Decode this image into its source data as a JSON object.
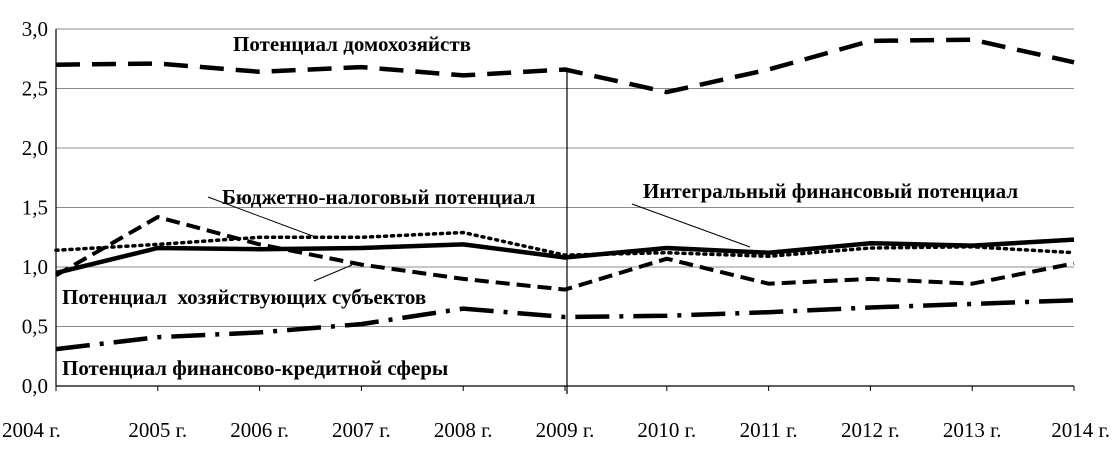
{
  "chart_data": {
    "type": "line",
    "title": "",
    "xlabel": "",
    "ylabel": "",
    "categories": [
      "2004 г.",
      "2005 г.",
      "2006 г.",
      "2007 г.",
      "2008 г.",
      "2009 г.",
      "2010 г.",
      "2011 г.",
      "2012 г.",
      "2013 г.",
      "2014 г."
    ],
    "ylim": [
      0,
      3.0
    ],
    "yticks": [
      "0,0",
      "0,5",
      "1,0",
      "1,5",
      "2,0",
      "2,5",
      "3,0"
    ],
    "grid": "horizontal",
    "series": [
      {
        "name": "Потенциал домохозяйств",
        "style": "dashed",
        "values": [
          2.7,
          2.71,
          2.64,
          2.68,
          2.61,
          2.66,
          2.47,
          2.66,
          2.9,
          2.91,
          2.72
        ]
      },
      {
        "name": "Бюджетно-налоговый потенциал",
        "style": "dotted",
        "values": [
          1.14,
          1.19,
          1.25,
          1.25,
          1.29,
          1.1,
          1.12,
          1.09,
          1.16,
          1.17,
          1.12
        ]
      },
      {
        "name": "Интегральный финансовый потенциал",
        "style": "solid",
        "values": [
          0.95,
          1.16,
          1.15,
          1.16,
          1.19,
          1.08,
          1.16,
          1.12,
          1.2,
          1.18,
          1.23
        ]
      },
      {
        "name": "Потенциал  хозяйствующих субъектов",
        "style": "short-dash",
        "values": [
          0.93,
          1.42,
          1.19,
          1.02,
          0.9,
          0.81,
          1.07,
          0.86,
          0.9,
          0.86,
          1.03
        ]
      },
      {
        "name": "Потенциал финансово-кредитной сферы",
        "style": "dash-dot",
        "values": [
          0.31,
          0.41,
          0.45,
          0.52,
          0.65,
          0.58,
          0.59,
          0.62,
          0.66,
          0.69,
          0.72
        ]
      }
    ],
    "vertical_marker": "2009 г."
  }
}
